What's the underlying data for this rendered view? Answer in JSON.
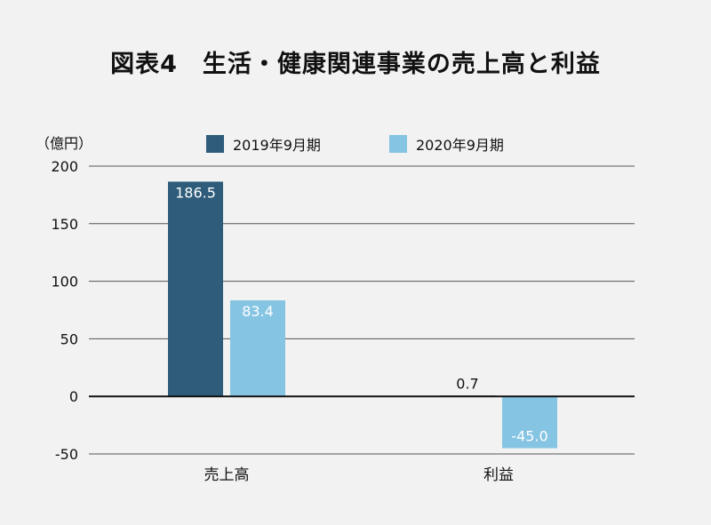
{
  "title": "図表4　生活・健康関連事業の売上高と利益",
  "chart_data": {
    "type": "bar",
    "unit_label": "（億円）",
    "categories": [
      "売上高",
      "利益"
    ],
    "series": [
      {
        "name": "2019年9月期",
        "color": "#2e5c7a",
        "values": [
          186.5,
          0.7
        ],
        "labels": [
          "186.5",
          "0.7"
        ]
      },
      {
        "name": "2020年9月期",
        "color": "#85c4e2",
        "values": [
          83.4,
          -45.0
        ],
        "labels": [
          "83.4",
          "-45.0"
        ]
      }
    ],
    "ylim": [
      -50,
      200
    ],
    "yticks": [
      -50,
      0,
      50,
      100,
      150,
      200
    ],
    "ytick_labels": [
      "-50",
      "0",
      "50",
      "100",
      "150",
      "200"
    ],
    "grid": true,
    "legend": "top-center"
  }
}
